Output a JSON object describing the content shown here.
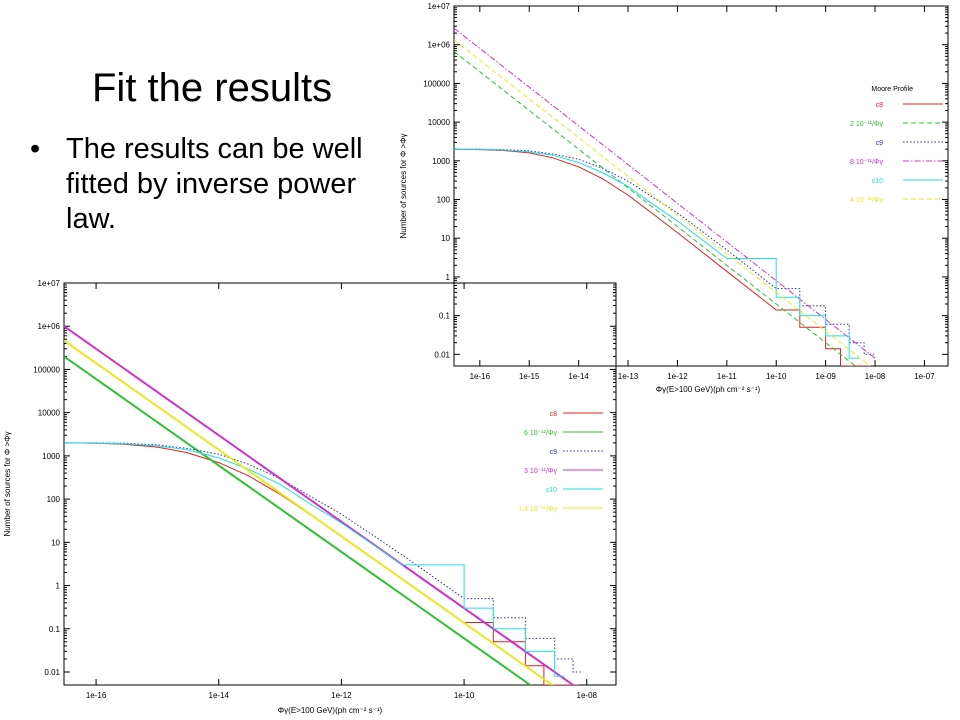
{
  "slide": {
    "title": "Fit the results",
    "bullet_symbol": "•",
    "bullet": "The results can be well fitted by inverse power law."
  },
  "chart_data": [
    {
      "type": "line",
      "scale": "log-log",
      "grid": false,
      "legend_placement": "right",
      "legend_title": "Moore Profile",
      "ylabel": "Number of sources for Φ >Φγ",
      "xlabel": "Φγ(E>100 GeV)(ph cm⁻² s⁻¹)",
      "xlim": [
        3e-17,
        3e-07
      ],
      "ylim": [
        0.005,
        10000000
      ],
      "x_ticks": [
        "1e-16",
        "1e-15",
        "1e-14",
        "1e-13",
        "1e-12",
        "1e-11",
        "1e-10",
        "1e-09",
        "1e-08",
        "1e-07"
      ],
      "y_ticks": [
        "0.01",
        "0.1",
        "1",
        "10",
        "100",
        "1000",
        "10000",
        "100000",
        "1e+06",
        "1e+07"
      ],
      "series": [
        {
          "name": "c8",
          "color": "#e02020",
          "style": "solid",
          "kind": "simulation",
          "x": [
            3e-17,
            1e-16,
            3e-16,
            1e-15,
            3e-15,
            1e-14,
            3e-14,
            1e-13,
            3e-13,
            1e-12,
            1e-11,
            1e-10,
            3e-10,
            1e-09,
            2e-09,
            5e-09
          ],
          "y": [
            2000,
            1950,
            1850,
            1600,
            1200,
            700,
            350,
            130,
            45,
            14,
            1.4,
            0.14,
            0.05,
            0.014,
            0.005,
            0.005
          ]
        },
        {
          "name": "2 10⁻¹¹/Φγ",
          "color": "#30c030",
          "style": "dash",
          "kind": "fit",
          "A": 2e-11,
          "x": [
            3e-17,
            1e-08
          ],
          "y": [
            666667,
            0.002
          ]
        },
        {
          "name": "c9",
          "color": "#2030c0",
          "style": "dot",
          "kind": "simulation",
          "x": [
            3e-17,
            1e-16,
            3e-16,
            1e-15,
            3e-15,
            1e-14,
            3e-14,
            1e-13,
            3e-13,
            1e-12,
            1e-11,
            1e-10,
            3e-10,
            1e-09,
            3e-09,
            6e-09
          ],
          "y": [
            2000,
            2000,
            1950,
            1800,
            1500,
            1100,
            650,
            300,
            120,
            45,
            5,
            0.5,
            0.18,
            0.06,
            0.02,
            0.01
          ]
        },
        {
          "name": "8 10⁻¹¹/Φγ",
          "color": "#d030d0",
          "style": "dashdot",
          "kind": "fit",
          "A": 8e-11,
          "x": [
            3e-17,
            1e-08
          ],
          "y": [
            2666667,
            0.008
          ]
        },
        {
          "name": "c10",
          "color": "#20e0e0",
          "style": "solid",
          "kind": "simulation",
          "x": [
            3e-17,
            1e-16,
            3e-16,
            1e-15,
            3e-15,
            1e-14,
            3e-14,
            1e-13,
            3e-13,
            1e-12,
            1e-11,
            1e-10,
            3e-10,
            1e-09,
            3e-09
          ],
          "y": [
            2000,
            1980,
            1900,
            1700,
            1400,
            900,
            500,
            220,
            80,
            28,
            3,
            0.3,
            0.1,
            0.03,
            0.008
          ]
        },
        {
          "name": "4 10⁻¹¹/Φγ",
          "color": "#e8e820",
          "style": "dash",
          "kind": "fit",
          "A": 4e-11,
          "x": [
            3e-17,
            1e-08
          ],
          "y": [
            1333333,
            0.004
          ]
        }
      ]
    },
    {
      "type": "line",
      "scale": "log-log",
      "grid": false,
      "legend_placement": "right",
      "ylabel": "Number of sources for Φ >Φγ",
      "xlabel": "Φγ(E>100 GeV)(ph cm⁻² s⁻¹)",
      "xlim": [
        3e-17,
        3e-08
      ],
      "ylim": [
        0.005,
        10000000
      ],
      "x_ticks": [
        "1e-16",
        "1e-14",
        "1e-12",
        "1e-10",
        "1e-08"
      ],
      "y_ticks": [
        "0.01",
        "0.1",
        "1",
        "10",
        "100",
        "1000",
        "10000",
        "100000",
        "1e+06",
        "1e+07"
      ],
      "series": [
        {
          "name": "c8",
          "color": "#e02020",
          "style": "solid",
          "kind": "simulation",
          "x": [
            3e-17,
            1e-16,
            3e-16,
            1e-15,
            3e-15,
            1e-14,
            3e-14,
            1e-13,
            3e-13,
            1e-12,
            1e-11,
            1e-10,
            3e-10,
            1e-09,
            2e-09,
            5e-09
          ],
          "y": [
            2000,
            1950,
            1850,
            1600,
            1200,
            700,
            350,
            130,
            45,
            14,
            1.4,
            0.14,
            0.05,
            0.014,
            0.005,
            0.005
          ]
        },
        {
          "name": "6 10⁻¹²/Φγ",
          "color": "#30c030",
          "style": "solid",
          "kind": "fit",
          "A": 6e-12,
          "x": [
            3e-17,
            6e-09
          ],
          "y": [
            200000,
            0.001
          ]
        },
        {
          "name": "c9",
          "color": "#2030c0",
          "style": "dot",
          "kind": "simulation",
          "x": [
            3e-17,
            1e-16,
            3e-16,
            1e-15,
            3e-15,
            1e-14,
            3e-14,
            1e-13,
            3e-13,
            1e-12,
            1e-11,
            1e-10,
            3e-10,
            1e-09,
            3e-09,
            6e-09
          ],
          "y": [
            2000,
            2000,
            1950,
            1800,
            1500,
            1100,
            650,
            300,
            120,
            45,
            5,
            0.5,
            0.18,
            0.06,
            0.02,
            0.01
          ]
        },
        {
          "name": "3 10⁻¹¹/Φγ",
          "color": "#d030d0",
          "style": "solid",
          "kind": "fit",
          "A": 3e-11,
          "x": [
            3e-17,
            1e-08
          ],
          "y": [
            1000000,
            0.003
          ]
        },
        {
          "name": "c10",
          "color": "#20e0e0",
          "style": "solid",
          "kind": "simulation",
          "x": [
            3e-17,
            1e-16,
            3e-16,
            1e-15,
            3e-15,
            1e-14,
            3e-14,
            1e-13,
            3e-13,
            1e-12,
            1e-11,
            1e-10,
            3e-10,
            1e-09,
            3e-09
          ],
          "y": [
            2000,
            1980,
            1900,
            1700,
            1400,
            900,
            500,
            220,
            80,
            28,
            3,
            0.3,
            0.1,
            0.03,
            0.008
          ]
        },
        {
          "name": "1.4 10⁻¹¹/Φγ",
          "color": "#e8e820",
          "style": "solid",
          "kind": "fit",
          "A": 1.4e-11,
          "x": [
            3e-17,
            8e-09
          ],
          "y": [
            466667,
            0.0017
          ]
        }
      ]
    }
  ]
}
